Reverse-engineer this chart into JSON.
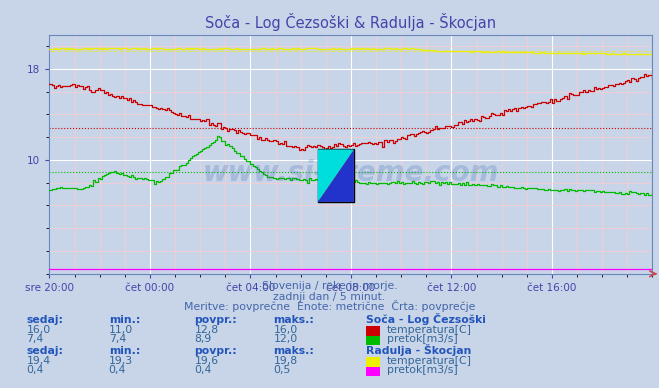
{
  "title": "Soča - Log Čezsoški & Radulja - Škocjan",
  "title_color": "#4444aa",
  "bg_color": "#c8d4e8",
  "plot_bg_color": "#c8d4e8",
  "grid_color": "#ffffff",
  "grid_minor_color": "#ffcccc",
  "xlabel_color": "#4444aa",
  "x_labels": [
    "sre 20:00",
    "čet 00:00",
    "čet 04:00",
    "čet 08:00",
    "čet 12:00",
    "čet 16:00"
  ],
  "x_ticks_pos": [
    0,
    48,
    96,
    144,
    192,
    240
  ],
  "n_points": 289,
  "ylim": [
    0,
    21
  ],
  "yticks": [
    10,
    18
  ],
  "watermark": "www.si-vreme.com",
  "subtitle1": "Slovenija / reke in morje.",
  "subtitle2": "zadnji dan / 5 minut.",
  "subtitle3": "Meritve: povprečne  Enote: metrične  Črta: povprečje",
  "subtitle_color": "#4466aa",
  "table_header_color": "#2255bb",
  "table_value_color": "#336699",
  "soca_temp_color": "#cc0000",
  "soca_pretok_color": "#00bb00",
  "radulja_temp_color": "#eeee00",
  "radulja_pretok_color": "#ff00ff",
  "soca_temp_avg": 12.8,
  "soca_pretok_avg": 8.9,
  "radulja_temp_avg": 19.6,
  "radulja_pretok_avg": 0.4,
  "soca_sedaj_temp": "16,0",
  "soca_min_temp": "11,0",
  "soca_povpr_temp": "12,8",
  "soca_maks_temp": "16,0",
  "soca_sedaj_pretok": "7,4",
  "soca_min_pretok": "7,4",
  "soca_povpr_pretok": "8,9",
  "soca_maks_pretok": "12,0",
  "radulja_sedaj_temp": "19,4",
  "radulja_min_temp": "19,3",
  "radulja_povpr_temp": "19,6",
  "radulja_maks_temp": "19,8",
  "radulja_sedaj_pretok": "0,4",
  "radulja_min_pretok": "0,4",
  "radulja_povpr_pretok": "0,4",
  "radulja_maks_pretok": "0,5"
}
